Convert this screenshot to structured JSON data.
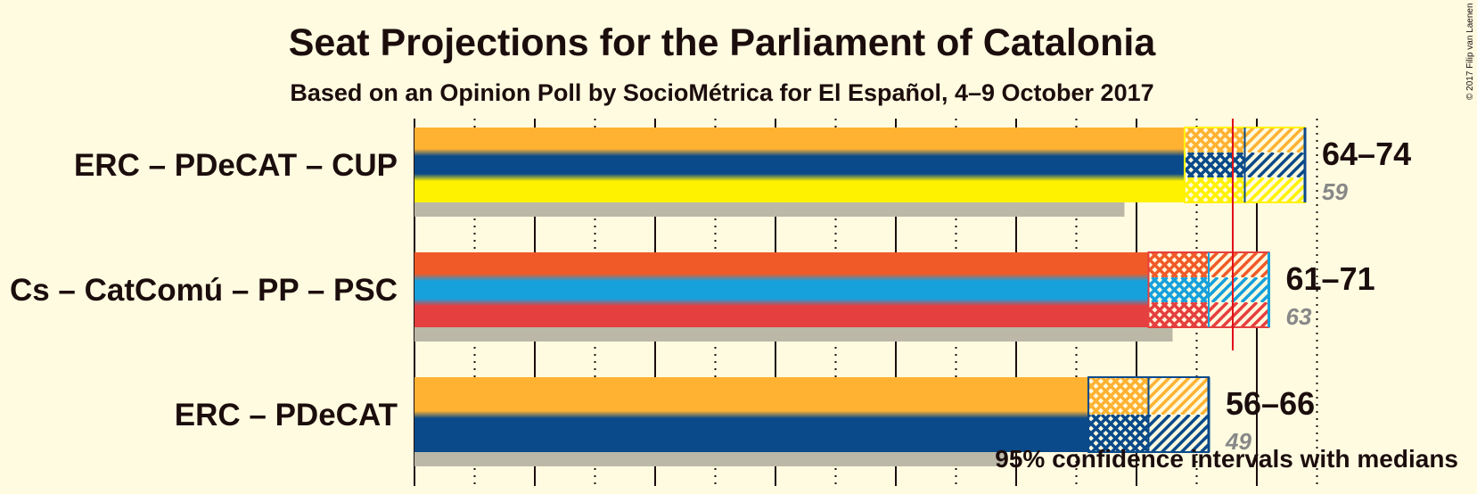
{
  "header": {
    "title": "Seat Projections for the Parliament of Catalonia",
    "subtitle": "Based on an Opinion Poll by SocioMétrica for El Español, 4–9 October 2017"
  },
  "footnote": "95% confidence intervals with medians",
  "copyright": "© 2017 Filip van Laenen",
  "chart_data": {
    "type": "bar",
    "title": "Seat Projections for the Parliament of Catalonia",
    "subtitle": "Based on an Opinion Poll by SocioMétrica for El Español, 4–9 October 2017",
    "xlim": [
      0,
      75
    ],
    "majority": 68,
    "major_tick_step": 10,
    "minor_tick_step": 5,
    "grid": true,
    "legend": "bottom-right",
    "series": [
      {
        "name": "ERC – PDeCAT – CUP",
        "low": 64,
        "median": 69,
        "high": 74,
        "last_result": 59,
        "range_label": "64–74",
        "last_label": "59",
        "colors": [
          "#ffb232",
          "#0a4a8a",
          "#fff200"
        ]
      },
      {
        "name": "Cs – CatComú – PP – PSC",
        "low": 61,
        "median": 66,
        "high": 71,
        "last_result": 63,
        "range_label": "61–71",
        "last_label": "63",
        "colors": [
          "#f05a28",
          "#16a0dc",
          "#e53f3f"
        ]
      },
      {
        "name": "ERC – PDeCAT",
        "low": 56,
        "median": 61,
        "high": 66,
        "last_result": 49,
        "range_label": "56–66",
        "last_label": "49",
        "colors": [
          "#ffb232",
          "#0a4a8a"
        ]
      }
    ]
  }
}
